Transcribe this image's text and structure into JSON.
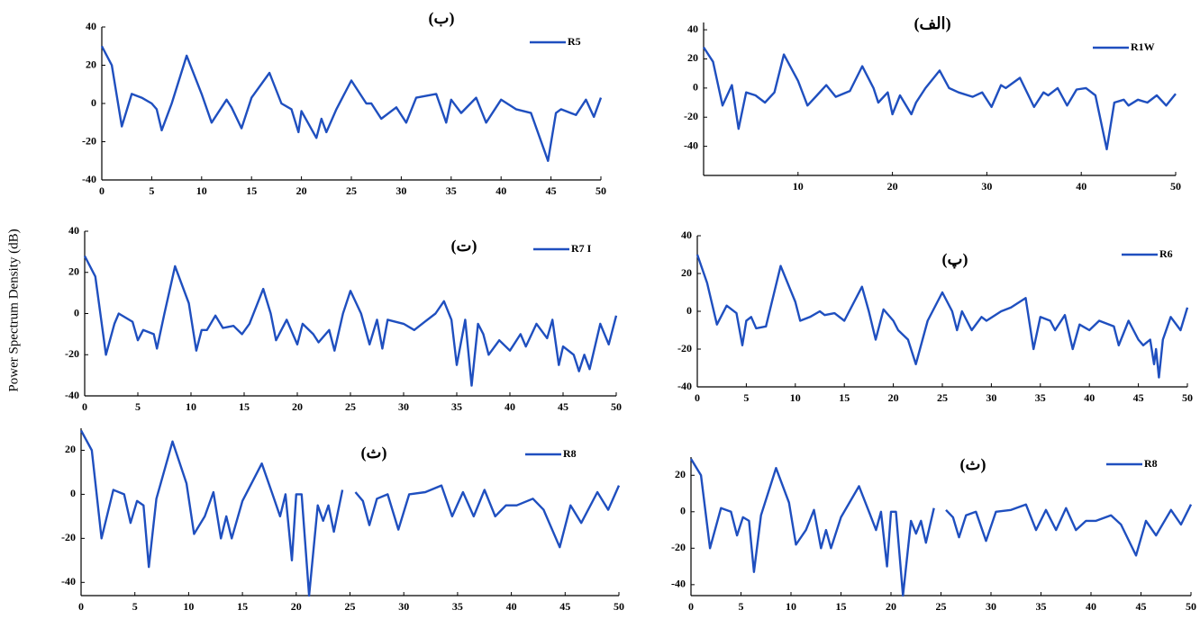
{
  "ylabel": "Power Spectrum Density (dB)",
  "chart_data": [
    {
      "type": "line",
      "title": "(ب)",
      "x": [
        0,
        1,
        2,
        3,
        4,
        5,
        5.5,
        6,
        7,
        8.5,
        10,
        11,
        12.5,
        13,
        14,
        15,
        16.8,
        18,
        19,
        19.7,
        20,
        21.5,
        22,
        22.5,
        23.5,
        25,
        26.5,
        27,
        28,
        29.5,
        30.5,
        31.5,
        33.5,
        34.5,
        35,
        36,
        37.5,
        38.5,
        40,
        41.5,
        43,
        44.7,
        45.5,
        46,
        47.5,
        48.5,
        49.3,
        50
      ],
      "series": [
        {
          "name": "R5",
          "color": "#1f4fbf",
          "values": [
            30,
            20,
            -12,
            5,
            3,
            0,
            -3,
            -14,
            0,
            25,
            5,
            -10,
            2,
            -2,
            -13,
            3,
            16,
            0,
            -3,
            -15,
            -4,
            -18,
            -8,
            -15,
            -3,
            12,
            0,
            0,
            -8,
            -2,
            -10,
            3,
            5,
            -10,
            2,
            -5,
            3,
            -10,
            2,
            -3,
            -5,
            -30,
            -5,
            -3,
            -6,
            2,
            -7,
            3
          ]
        }
      ],
      "xlim": [
        0,
        50
      ],
      "ylim": [
        -40,
        40
      ],
      "xticks": [
        0,
        5,
        10,
        15,
        20,
        25,
        30,
        35,
        40,
        45,
        50
      ],
      "yticks": [
        -40,
        -20,
        0,
        20,
        40
      ]
    },
    {
      "type": "line",
      "title": "(الف)",
      "x": [
        0,
        1,
        2,
        3,
        3.7,
        4.5,
        5.5,
        6.5,
        7.5,
        8.5,
        10,
        11,
        12,
        13,
        14,
        15.5,
        16.8,
        18,
        18.5,
        19.5,
        20,
        20.8,
        22,
        22.5,
        23.5,
        25,
        26,
        27,
        28.5,
        29.5,
        30.5,
        31.5,
        32,
        33.5,
        35,
        36,
        36.5,
        37.5,
        38.5,
        39.5,
        40.5,
        41.5,
        42.7,
        43.5,
        44.5,
        45,
        46,
        47,
        48,
        49,
        50
      ],
      "series": [
        {
          "name": "R1W",
          "color": "#1f4fbf",
          "values": [
            28,
            18,
            -12,
            2,
            -28,
            -3,
            -5,
            -10,
            -3,
            23,
            5,
            -12,
            -5,
            2,
            -6,
            -2,
            15,
            0,
            -10,
            -3,
            -18,
            -5,
            -18,
            -10,
            0,
            12,
            0,
            -3,
            -6,
            -3,
            -13,
            2,
            0,
            7,
            -13,
            -3,
            -5,
            0,
            -12,
            -1,
            0,
            -5,
            -42,
            -10,
            -8,
            -12,
            -8,
            -10,
            -5,
            -12,
            -4
          ]
        }
      ],
      "xlim": [
        0,
        50
      ],
      "ylim": [
        -60,
        45
      ],
      "xticks": [
        10,
        20,
        30,
        40,
        50
      ],
      "yticks": [
        -40,
        -20,
        0,
        20,
        40
      ]
    },
    {
      "type": "line",
      "title": "(ت)",
      "x": [
        0,
        1,
        2,
        2.8,
        3.2,
        4.5,
        5,
        5.5,
        6.5,
        6.8,
        7.5,
        8.5,
        9.8,
        10.5,
        11,
        11.5,
        12.3,
        13,
        14,
        14.8,
        15.5,
        16.8,
        17.5,
        18,
        19,
        20,
        20.5,
        21.5,
        22,
        23,
        23.5,
        24.3,
        25,
        26,
        26.8,
        27.5,
        28,
        28.5,
        30,
        31,
        32,
        33,
        33.8,
        34.5,
        35,
        35.8,
        36.4,
        37,
        37.5,
        38,
        39,
        40,
        41,
        41.5,
        42.5,
        43.5,
        44,
        44.6,
        45,
        46,
        46.5,
        47,
        47.5,
        48.5,
        49.3,
        50
      ],
      "series": [
        {
          "name": "R7 I",
          "color": "#1f4fbf",
          "values": [
            28,
            18,
            -20,
            -5,
            0,
            -4,
            -13,
            -8,
            -10,
            -17,
            0,
            23,
            5,
            -18,
            -8,
            -8,
            -1,
            -7,
            -6,
            -10,
            -5,
            12,
            0,
            -13,
            -3,
            -15,
            -5,
            -10,
            -14,
            -8,
            -18,
            0,
            11,
            0,
            -15,
            -3,
            -17,
            -3,
            -5,
            -8,
            -4,
            0,
            6,
            -3,
            -25,
            -3,
            -35,
            -5,
            -10,
            -20,
            -13,
            -18,
            -10,
            -16,
            -5,
            -12,
            -3,
            -25,
            -16,
            -20,
            -28,
            -20,
            -27,
            -5,
            -15,
            -1
          ]
        }
      ],
      "xlim": [
        0,
        50
      ],
      "ylim": [
        -40,
        40
      ],
      "xticks": [
        0,
        5,
        10,
        15,
        20,
        25,
        30,
        35,
        40,
        45,
        50
      ],
      "yticks": [
        -40,
        -20,
        0,
        20,
        40
      ]
    },
    {
      "type": "line",
      "title": "(پ)",
      "x": [
        0,
        1,
        2,
        3,
        4,
        4.6,
        5,
        5.5,
        6,
        7,
        8.5,
        10,
        10.5,
        11.5,
        12.5,
        13,
        14,
        15,
        16.8,
        17.5,
        18.2,
        19,
        20,
        20.5,
        21.5,
        22.3,
        23.5,
        25,
        26,
        26.5,
        27,
        28,
        29,
        29.5,
        31,
        32,
        33.5,
        34.3,
        35,
        36,
        36.5,
        37.5,
        38.3,
        39,
        40,
        41,
        42.5,
        43,
        44,
        45,
        45.5,
        46.2,
        46.6,
        46.8,
        47.1,
        47.5,
        48.3,
        49.3,
        50
      ],
      "series": [
        {
          "name": "R6",
          "color": "#1f4fbf",
          "values": [
            30,
            15,
            -7,
            3,
            -1,
            -18,
            -5,
            -3,
            -9,
            -8,
            24,
            5,
            -5,
            -3,
            0,
            -2,
            -1,
            -5,
            13,
            0,
            -15,
            1,
            -5,
            -10,
            -15,
            -28,
            -5,
            10,
            0,
            -10,
            0,
            -10,
            -3,
            -5,
            0,
            2,
            7,
            -20,
            -3,
            -5,
            -10,
            -2,
            -20,
            -7,
            -10,
            -5,
            -8,
            -18,
            -5,
            -15,
            -18,
            -15,
            -28,
            -20,
            -35,
            -15,
            -3,
            -10,
            2
          ]
        }
      ],
      "xlim": [
        0,
        50
      ],
      "ylim": [
        -40,
        40
      ],
      "xticks": [
        0,
        5,
        10,
        15,
        20,
        25,
        30,
        35,
        40,
        45,
        50
      ],
      "yticks": [
        -40,
        -20,
        0,
        20,
        40
      ]
    },
    {
      "type": "line",
      "title": "(ث)",
      "x": [
        0,
        1,
        1.9,
        3,
        4,
        4.6,
        5.2,
        5.8,
        6.3,
        7,
        8.5,
        9.8,
        10.5,
        11.5,
        12.3,
        13,
        13.5,
        14,
        15,
        16.8,
        17.8,
        18.5,
        19,
        19.6,
        20,
        20.5,
        21.2,
        22,
        22.5,
        23,
        23.5,
        24.3,
        24.9,
        25.5,
        26.2,
        26.8,
        27.5,
        28.5,
        29.5,
        30.5,
        32,
        33.5,
        34.5,
        35.5,
        36.5,
        37.5,
        38.5,
        39.5,
        40.5,
        42,
        43,
        44.5,
        45.5,
        46.5,
        48,
        49,
        50
      ],
      "series": [
        {
          "name": "R8",
          "color": "#1f4fbf",
          "values": [
            29,
            20,
            -20,
            2,
            0,
            -13,
            -3,
            -5,
            -33,
            -2,
            24,
            5,
            -18,
            -10,
            1,
            -20,
            -10,
            -20,
            -3,
            14,
            0,
            -10,
            0,
            -30,
            0,
            0,
            -46,
            -5,
            -12,
            -5,
            -17,
            2,
            null,
            1,
            -3,
            -14,
            -2,
            0,
            -16,
            0,
            1,
            4,
            -10,
            1,
            -10,
            2,
            -10,
            -5,
            -5,
            -2,
            -7,
            -24,
            -5,
            -13,
            1,
            -7,
            4
          ]
        }
      ],
      "xlim": [
        0,
        50
      ],
      "ylim": [
        -46,
        30
      ],
      "xticks": [
        0,
        5,
        10,
        15,
        20,
        25,
        30,
        35,
        40,
        45,
        50
      ],
      "yticks": [
        -40,
        -20,
        0,
        20
      ]
    },
    {
      "type": "line",
      "title": "(ث)",
      "x": [
        0,
        1,
        1.9,
        3,
        4,
        4.6,
        5.2,
        5.8,
        6.3,
        7,
        8.5,
        9.8,
        10.5,
        11.5,
        12.3,
        13,
        13.5,
        14,
        15,
        16.8,
        17.8,
        18.5,
        19,
        19.6,
        20,
        20.5,
        21.2,
        22,
        22.5,
        23,
        23.5,
        24.3,
        24.9,
        25.5,
        26.2,
        26.8,
        27.5,
        28.5,
        29.5,
        30.5,
        32,
        33.5,
        34.5,
        35.5,
        36.5,
        37.5,
        38.5,
        39.5,
        40.5,
        42,
        43,
        44.5,
        45.5,
        46.5,
        48,
        49,
        50
      ],
      "series": [
        {
          "name": "R8",
          "color": "#1f4fbf",
          "values": [
            29,
            20,
            -20,
            2,
            0,
            -13,
            -3,
            -5,
            -33,
            -2,
            24,
            5,
            -18,
            -10,
            1,
            -20,
            -10,
            -20,
            -3,
            14,
            0,
            -10,
            0,
            -30,
            0,
            0,
            -46,
            -5,
            -12,
            -5,
            -17,
            2,
            null,
            1,
            -3,
            -14,
            -2,
            0,
            -16,
            0,
            1,
            4,
            -10,
            1,
            -10,
            2,
            -10,
            -5,
            -5,
            -2,
            -7,
            -24,
            -5,
            -13,
            1,
            -7,
            4
          ]
        }
      ],
      "xlim": [
        0,
        50
      ],
      "ylim": [
        -46,
        30
      ],
      "xticks": [
        0,
        5,
        10,
        15,
        20,
        25,
        30,
        35,
        40,
        45,
        50
      ],
      "yticks": [
        -40,
        -20,
        0,
        20
      ]
    }
  ]
}
